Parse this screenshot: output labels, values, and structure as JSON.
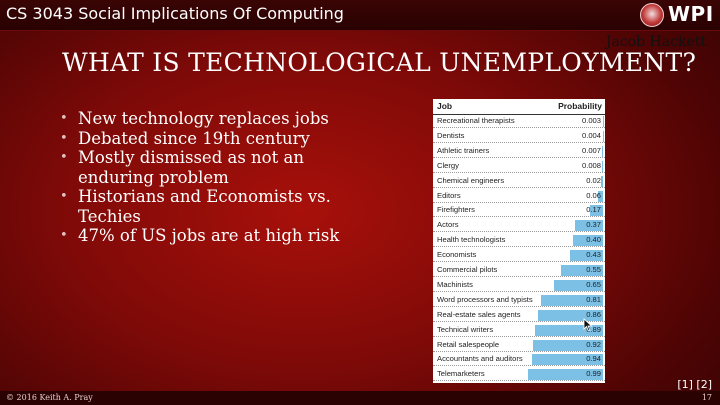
{
  "header": {
    "course_title": "CS 3043 Social Implications Of Computing",
    "logo_text": "WPI"
  },
  "slide": {
    "author": "Jacob Hackett",
    "title": "WHAT IS TECHNOLOGICAL UNEMPLOYMENT?",
    "bullets": [
      "New technology replaces jobs",
      "Debated since 19th century",
      "Mostly dismissed as not an enduring problem",
      "Historians and Economists vs. Techies",
      "47% of US jobs are at high risk"
    ],
    "references": "[1] [2]"
  },
  "table": {
    "col_job": "Job",
    "col_probability": "Probability",
    "bar_color": "#7cc0e6",
    "rows": [
      {
        "job": "Recreational therapists",
        "prob": "0.003"
      },
      {
        "job": "Dentists",
        "prob": "0.004"
      },
      {
        "job": "Athletic trainers",
        "prob": "0.007"
      },
      {
        "job": "Clergy",
        "prob": "0.008"
      },
      {
        "job": "Chemical engineers",
        "prob": "0.02"
      },
      {
        "job": "Editors",
        "prob": "0.06"
      },
      {
        "job": "Firefighters",
        "prob": "0.17"
      },
      {
        "job": "Actors",
        "prob": "0.37"
      },
      {
        "job": "Health technologists",
        "prob": "0.40"
      },
      {
        "job": "Economists",
        "prob": "0.43"
      },
      {
        "job": "Commercial pilots",
        "prob": "0.55"
      },
      {
        "job": "Machinists",
        "prob": "0.65"
      },
      {
        "job": "Word processors and typists",
        "prob": "0.81"
      },
      {
        "job": "Real-estate sales agents",
        "prob": "0.86"
      },
      {
        "job": "Technical writers",
        "prob": "0.89"
      },
      {
        "job": "Retail salespeople",
        "prob": "0.92"
      },
      {
        "job": "Accountants and auditors",
        "prob": "0.94"
      },
      {
        "job": "Telemarketers",
        "prob": "0.99"
      }
    ]
  },
  "footer": {
    "copyright": "© 2016 Keith A. Pray",
    "page_number": "17"
  }
}
